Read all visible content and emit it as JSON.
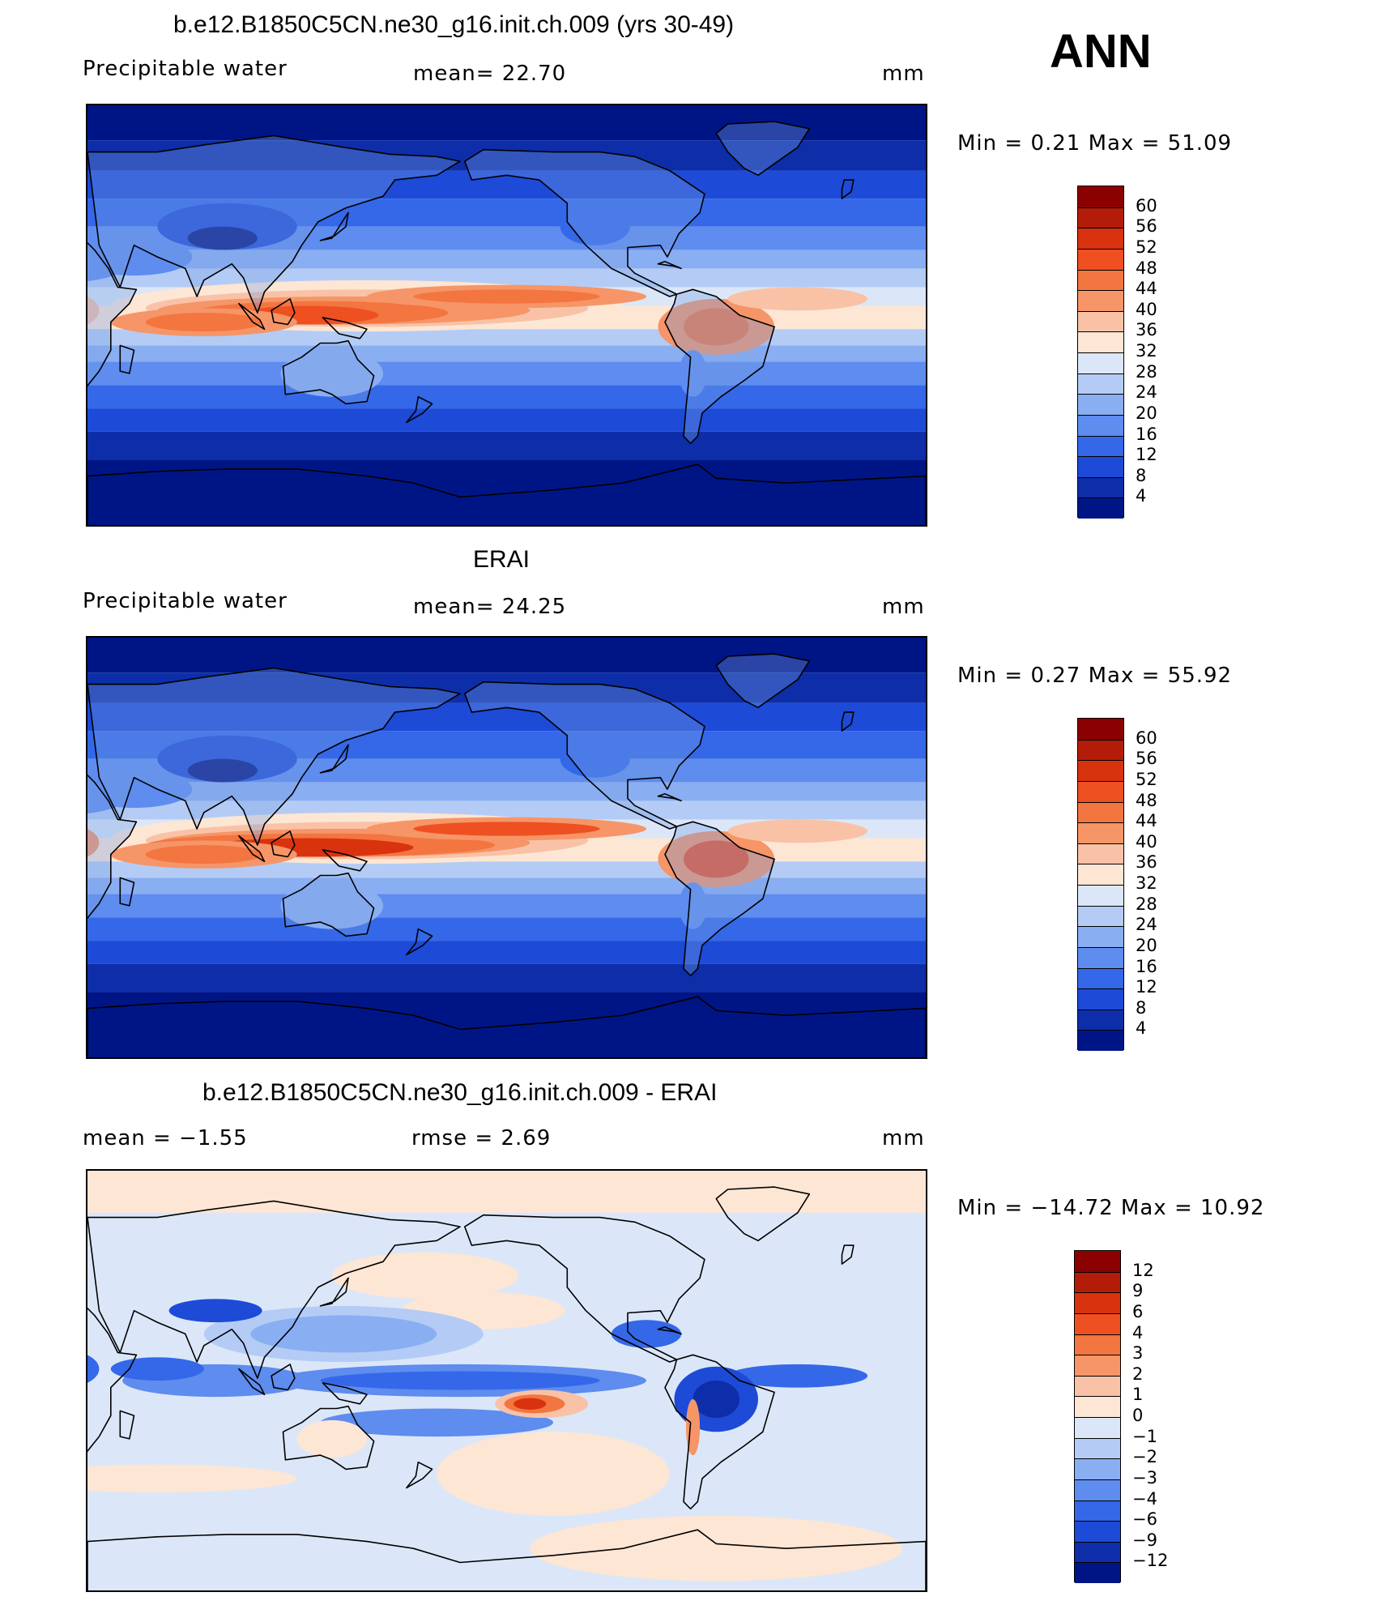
{
  "season": "ANN",
  "panels": [
    {
      "title": "b.e12.B1850C5CN.ne30_g16.init.ch.009 (yrs 30-49)",
      "left_label": "Precipitable  water",
      "center_label": "mean=   22.70",
      "right_label": "mm",
      "minmax": "Min  =     0.21  Max  =    51.09",
      "field": "model",
      "colorbar": {
        "levels": [
          "60",
          "56",
          "52",
          "48",
          "44",
          "40",
          "36",
          "32",
          "28",
          "24",
          "20",
          "16",
          "12",
          "8",
          "4"
        ],
        "colors": [
          "#8b0000",
          "#b31c08",
          "#d9320f",
          "#ee5022",
          "#f37540",
          "#f69567",
          "#f9c2a6",
          "#fde6d4",
          "#dbe7f8",
          "#b4ccf5",
          "#8aaef2",
          "#5e8cef",
          "#3468e8",
          "#1d4ad6",
          "#0d2ea8",
          "#001585"
        ]
      }
    },
    {
      "title": "ERAI",
      "left_label": "Precipitable  water",
      "center_label": "mean=   24.25",
      "right_label": "mm",
      "minmax": "Min  =     0.27  Max  =    55.92",
      "field": "obs",
      "colorbar": {
        "levels": [
          "60",
          "56",
          "52",
          "48",
          "44",
          "40",
          "36",
          "32",
          "28",
          "24",
          "20",
          "16",
          "12",
          "8",
          "4"
        ],
        "colors": [
          "#8b0000",
          "#b31c08",
          "#d9320f",
          "#ee5022",
          "#f37540",
          "#f69567",
          "#f9c2a6",
          "#fde6d4",
          "#dbe7f8",
          "#b4ccf5",
          "#8aaef2",
          "#5e8cef",
          "#3468e8",
          "#1d4ad6",
          "#0d2ea8",
          "#001585"
        ]
      }
    },
    {
      "title": "b.e12.B1850C5CN.ne30_g16.init.ch.009 - ERAI",
      "left_label": "mean  =    −1.55",
      "center_label": "rmse  =     2.69",
      "right_label": "mm",
      "minmax": "Min  =  −14.72  Max  =    10.92",
      "field": "diff",
      "colorbar": {
        "levels": [
          "12",
          "9",
          "6",
          "4",
          "3",
          "2",
          "1",
          "0",
          "−1",
          "−2",
          "−3",
          "−4",
          "−6",
          "−9",
          "−12"
        ],
        "colors": [
          "#8b0000",
          "#b31c08",
          "#d9320f",
          "#ee5022",
          "#f37540",
          "#f69567",
          "#f9c2a6",
          "#fde6d4",
          "#dbe7f8",
          "#b4ccf5",
          "#8aaef2",
          "#5e8cef",
          "#3468e8",
          "#1d4ad6",
          "#0d2ea8",
          "#001585"
        ]
      }
    }
  ]
}
